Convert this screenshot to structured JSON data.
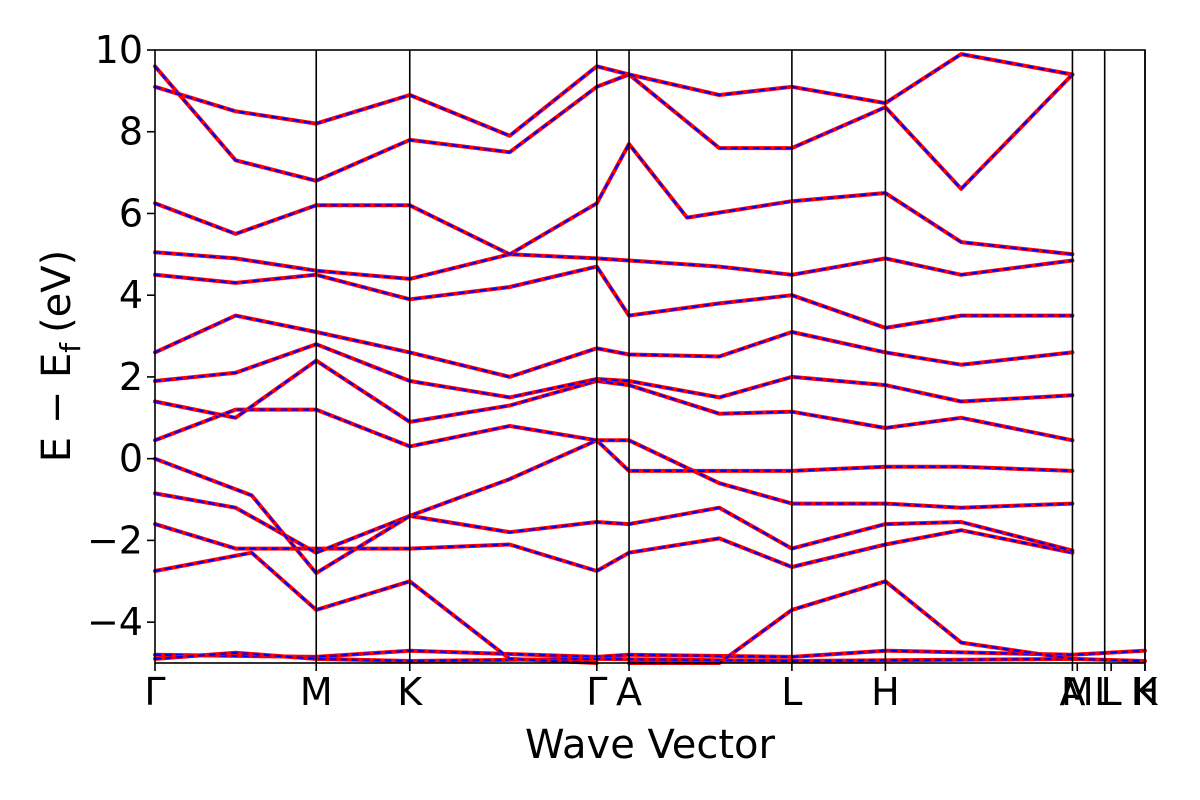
{
  "chart_data": {
    "type": "line",
    "title": "",
    "xlabel": "Wave Vector",
    "ylabel": "E − E",
    "ylabel_subscript": "f",
    "ylabel_unit": "(eV)",
    "ylim": [
      -5,
      10
    ],
    "y_ticks": [
      -4,
      -2,
      0,
      2,
      4,
      6,
      8,
      10
    ],
    "y_tick_labels": [
      "−4",
      "−2",
      "0",
      "2",
      "4",
      "6",
      "8",
      "10"
    ],
    "x_range": [
      0,
      6.14
    ],
    "k_points": [
      {
        "label": "Γ",
        "x": 0.0
      },
      {
        "label": "M",
        "x": 1.0
      },
      {
        "label": "K",
        "x": 1.58
      },
      {
        "label": "Γ",
        "x": 2.74
      },
      {
        "label": "A",
        "x": 2.94
      },
      {
        "label": "L",
        "x": 3.95
      },
      {
        "label": "H",
        "x": 4.53
      },
      {
        "label": "A",
        "x": 5.69
      },
      {
        "label": "M",
        "x": 5.72
      },
      {
        "label": "L",
        "x": 5.89
      },
      {
        "label": "L",
        "x": 5.93
      },
      {
        "label": "H",
        "x": 6.14
      },
      {
        "label": "K",
        "x": 6.14
      }
    ],
    "band_separators": [
      1.0,
      1.58,
      2.74,
      2.94,
      3.95,
      4.53,
      5.69,
      5.89,
      6.14
    ],
    "series": [
      {
        "color": "#ff0000",
        "style": "solid"
      },
      {
        "color": "#0000ff",
        "style": "dashed"
      }
    ],
    "bands": [
      [
        [
          0,
          -4.8
        ],
        [
          1.0,
          -4.85
        ],
        [
          1.58,
          -4.7
        ],
        [
          2.74,
          -4.85
        ],
        [
          2.94,
          -4.8
        ],
        [
          3.95,
          -4.85
        ],
        [
          4.53,
          -4.7
        ],
        [
          5.69,
          -4.8
        ],
        [
          6.14,
          -4.7
        ]
      ],
      [
        [
          0,
          -4.9
        ],
        [
          0.5,
          -4.75
        ],
        [
          1.0,
          -4.9
        ],
        [
          1.58,
          -4.95
        ],
        [
          2.74,
          -4.9
        ],
        [
          3.95,
          -4.95
        ],
        [
          5.69,
          -4.9
        ],
        [
          6.14,
          -4.95
        ]
      ],
      [
        [
          0,
          -2.75
        ],
        [
          0.6,
          -2.3
        ],
        [
          1.0,
          -3.7
        ],
        [
          1.58,
          -3.0
        ],
        [
          2.2,
          -4.9
        ],
        [
          2.74,
          -5.0
        ]
      ],
      [
        [
          2.94,
          -5.0
        ],
        [
          3.5,
          -5.0
        ],
        [
          3.95,
          -3.7
        ],
        [
          4.53,
          -3.0
        ],
        [
          5.0,
          -4.5
        ],
        [
          5.69,
          -4.9
        ]
      ],
      [
        [
          0,
          -1.6
        ],
        [
          0.5,
          -2.2
        ],
        [
          1.0,
          -2.2
        ],
        [
          1.58,
          -2.2
        ],
        [
          2.2,
          -2.1
        ],
        [
          2.74,
          -2.75
        ],
        [
          2.94,
          -2.3
        ],
        [
          3.5,
          -1.95
        ],
        [
          3.95,
          -2.65
        ],
        [
          4.53,
          -2.1
        ],
        [
          5.0,
          -1.75
        ],
        [
          5.69,
          -2.3
        ]
      ],
      [
        [
          0,
          -0.85
        ],
        [
          0.5,
          -1.2
        ],
        [
          1.0,
          -2.3
        ],
        [
          1.58,
          -1.4
        ],
        [
          2.2,
          -1.8
        ],
        [
          2.74,
          -1.55
        ],
        [
          2.94,
          -1.6
        ],
        [
          3.5,
          -1.2
        ],
        [
          3.95,
          -2.2
        ],
        [
          4.53,
          -1.6
        ],
        [
          5.0,
          -1.55
        ],
        [
          5.69,
          -2.25
        ]
      ],
      [
        [
          0,
          0.0
        ],
        [
          0.6,
          -0.9
        ],
        [
          1.0,
          -2.8
        ],
        [
          1.58,
          -1.4
        ],
        [
          2.2,
          -0.5
        ],
        [
          2.74,
          0.45
        ],
        [
          2.94,
          0.45
        ],
        [
          3.5,
          -0.6
        ],
        [
          3.95,
          -1.1
        ],
        [
          4.53,
          -1.1
        ],
        [
          5.0,
          -1.2
        ],
        [
          5.69,
          -1.1
        ]
      ],
      [
        [
          0,
          0.45
        ],
        [
          0.5,
          1.2
        ],
        [
          1.0,
          1.2
        ],
        [
          1.58,
          0.3
        ],
        [
          2.2,
          0.8
        ],
        [
          2.74,
          0.45
        ],
        [
          2.94,
          -0.3
        ],
        [
          3.5,
          -0.3
        ],
        [
          3.95,
          -0.3
        ],
        [
          4.53,
          -0.2
        ],
        [
          5.0,
          -0.2
        ],
        [
          5.69,
          -0.3
        ]
      ],
      [
        [
          0,
          1.4
        ],
        [
          0.5,
          1.0
        ],
        [
          1.0,
          2.4
        ],
        [
          1.58,
          0.9
        ],
        [
          2.2,
          1.3
        ],
        [
          2.74,
          1.9
        ],
        [
          2.94,
          1.8
        ],
        [
          3.5,
          1.1
        ],
        [
          3.95,
          1.15
        ],
        [
          4.53,
          0.75
        ],
        [
          5.0,
          1.0
        ],
        [
          5.69,
          0.45
        ]
      ],
      [
        [
          0,
          1.9
        ],
        [
          0.5,
          2.1
        ],
        [
          1.0,
          2.8
        ],
        [
          1.58,
          1.9
        ],
        [
          2.2,
          1.5
        ],
        [
          2.74,
          1.95
        ],
        [
          2.94,
          1.9
        ],
        [
          3.5,
          1.5
        ],
        [
          3.95,
          2.0
        ],
        [
          4.53,
          1.8
        ],
        [
          5.0,
          1.4
        ],
        [
          5.69,
          1.55
        ]
      ],
      [
        [
          0,
          2.6
        ],
        [
          0.5,
          3.5
        ],
        [
          1.0,
          3.1
        ],
        [
          1.58,
          2.6
        ],
        [
          2.2,
          2.0
        ],
        [
          2.74,
          2.7
        ],
        [
          2.94,
          2.55
        ],
        [
          3.5,
          2.5
        ],
        [
          3.95,
          3.1
        ],
        [
          4.53,
          2.6
        ],
        [
          5.0,
          2.3
        ],
        [
          5.69,
          2.6
        ]
      ],
      [
        [
          0,
          4.5
        ],
        [
          0.5,
          4.3
        ],
        [
          1.0,
          4.5
        ],
        [
          1.58,
          3.9
        ],
        [
          2.2,
          4.2
        ],
        [
          2.74,
          4.7
        ],
        [
          2.94,
          3.5
        ],
        [
          3.5,
          3.8
        ],
        [
          3.95,
          4.0
        ],
        [
          4.53,
          3.2
        ],
        [
          5.0,
          3.5
        ],
        [
          5.69,
          3.5
        ]
      ],
      [
        [
          0,
          5.05
        ],
        [
          0.5,
          4.9
        ],
        [
          1.0,
          4.6
        ],
        [
          1.58,
          4.4
        ],
        [
          2.2,
          5.0
        ],
        [
          2.74,
          4.9
        ],
        [
          2.94,
          4.85
        ],
        [
          3.5,
          4.7
        ],
        [
          3.95,
          4.5
        ],
        [
          4.53,
          4.9
        ],
        [
          5.0,
          4.5
        ],
        [
          5.69,
          4.85
        ]
      ],
      [
        [
          0,
          6.25
        ],
        [
          0.5,
          5.5
        ],
        [
          1.0,
          6.2
        ],
        [
          1.58,
          6.2
        ],
        [
          2.2,
          5.0
        ],
        [
          2.74,
          6.25
        ],
        [
          2.94,
          7.7
        ],
        [
          3.3,
          5.9
        ],
        [
          3.95,
          6.3
        ],
        [
          4.53,
          6.5
        ],
        [
          5.0,
          5.3
        ],
        [
          5.69,
          5.0
        ]
      ],
      [
        [
          0,
          9.6
        ],
        [
          0.5,
          7.3
        ],
        [
          1.0,
          6.8
        ],
        [
          1.58,
          7.8
        ],
        [
          2.2,
          7.5
        ],
        [
          2.74,
          9.1
        ],
        [
          2.94,
          9.4
        ],
        [
          3.5,
          7.6
        ],
        [
          3.95,
          7.6
        ],
        [
          4.53,
          8.6
        ],
        [
          5.0,
          6.6
        ],
        [
          5.69,
          9.4
        ]
      ],
      [
        [
          0,
          9.1
        ],
        [
          0.5,
          8.5
        ],
        [
          1.0,
          8.2
        ],
        [
          1.58,
          8.9
        ],
        [
          2.2,
          7.9
        ],
        [
          2.74,
          9.6
        ],
        [
          2.94,
          9.4
        ],
        [
          3.5,
          8.9
        ],
        [
          3.95,
          9.1
        ],
        [
          4.53,
          8.7
        ],
        [
          5.0,
          9.9
        ],
        [
          5.69,
          9.4
        ]
      ]
    ]
  }
}
